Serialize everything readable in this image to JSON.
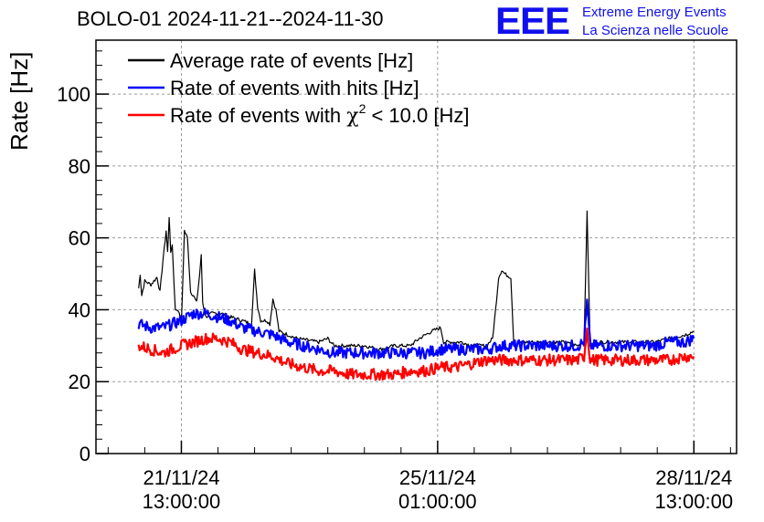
{
  "chart_data": {
    "type": "line",
    "title": "BOLO-01 2024-11-21--2024-11-30",
    "ylabel": "Rate [Hz]",
    "xlabel": "",
    "ylim": [
      0,
      115
    ],
    "yticks": [
      0,
      20,
      40,
      60,
      80,
      100
    ],
    "x_axis_unit": "hours since 2024-11-21 13:00:00",
    "xticks": [
      {
        "x": 0,
        "line1": "21/11/24",
        "line2": "13:00:00"
      },
      {
        "x": 84,
        "line1": "25/11/24",
        "line2": "01:00:00"
      },
      {
        "x": 168,
        "line1": "28/11/24",
        "line2": "13:00:00"
      }
    ],
    "xlim": [
      -28,
      182
    ],
    "grid": true,
    "legend_position": "top-left",
    "series": [
      {
        "name": "Average rate of events [Hz]",
        "color": "#000000",
        "points": [
          [
            -14,
            46
          ],
          [
            -13.5,
            50
          ],
          [
            -13,
            44
          ],
          [
            -12,
            48
          ],
          [
            -10,
            47
          ],
          [
            -8,
            49
          ],
          [
            -7,
            45
          ],
          [
            -6,
            54
          ],
          [
            -5,
            62
          ],
          [
            -4.5,
            56
          ],
          [
            -4,
            66
          ],
          [
            -3.5,
            56
          ],
          [
            -3,
            58
          ],
          [
            -2,
            40
          ],
          [
            -1,
            40
          ],
          [
            0,
            36
          ],
          [
            1,
            62
          ],
          [
            2,
            60
          ],
          [
            3,
            45
          ],
          [
            4,
            44
          ],
          [
            5,
            42
          ],
          [
            6,
            50
          ],
          [
            6.5,
            55
          ],
          [
            7,
            42
          ],
          [
            8,
            38
          ],
          [
            10,
            39
          ],
          [
            13,
            39
          ],
          [
            16,
            38
          ],
          [
            20,
            37
          ],
          [
            23,
            36
          ],
          [
            24,
            51
          ],
          [
            25,
            41
          ],
          [
            26,
            37
          ],
          [
            28,
            37
          ],
          [
            29,
            36
          ],
          [
            30,
            43
          ],
          [
            31,
            40
          ],
          [
            32,
            34
          ],
          [
            35,
            33
          ],
          [
            38,
            32
          ],
          [
            45,
            31
          ],
          [
            48,
            32
          ],
          [
            50,
            30
          ],
          [
            55,
            30
          ],
          [
            60,
            30
          ],
          [
            65,
            29
          ],
          [
            70,
            30
          ],
          [
            75,
            30
          ],
          [
            78,
            32
          ],
          [
            82,
            34
          ],
          [
            85,
            35
          ],
          [
            86,
            31
          ],
          [
            88,
            31
          ],
          [
            92,
            31
          ],
          [
            95,
            30
          ],
          [
            100,
            30
          ],
          [
            102,
            32
          ],
          [
            103,
            40
          ],
          [
            104,
            49
          ],
          [
            105,
            51
          ],
          [
            106,
            50
          ],
          [
            108,
            49
          ],
          [
            109,
            30
          ],
          [
            112,
            31
          ],
          [
            118,
            31
          ],
          [
            125,
            31
          ],
          [
            130,
            30
          ],
          [
            132,
            31
          ],
          [
            133,
            67
          ],
          [
            134,
            30
          ],
          [
            136,
            31
          ],
          [
            140,
            31
          ],
          [
            145,
            31
          ],
          [
            150,
            31
          ],
          [
            155,
            31
          ],
          [
            160,
            32
          ],
          [
            165,
            33
          ],
          [
            168,
            34
          ]
        ]
      },
      {
        "name": "Rate of events with hits [Hz]",
        "color": "#0000ff",
        "points": [
          [
            -14,
            36
          ],
          [
            -10,
            35
          ],
          [
            -6,
            35
          ],
          [
            -3,
            36
          ],
          [
            0,
            37
          ],
          [
            4,
            39
          ],
          [
            8,
            39
          ],
          [
            12,
            38
          ],
          [
            16,
            37
          ],
          [
            20,
            35
          ],
          [
            25,
            34
          ],
          [
            30,
            33
          ],
          [
            35,
            31
          ],
          [
            40,
            30
          ],
          [
            45,
            29
          ],
          [
            50,
            28
          ],
          [
            55,
            28
          ],
          [
            60,
            28
          ],
          [
            65,
            28
          ],
          [
            70,
            28
          ],
          [
            75,
            28
          ],
          [
            80,
            28
          ],
          [
            85,
            29
          ],
          [
            90,
            29
          ],
          [
            95,
            29
          ],
          [
            100,
            29
          ],
          [
            105,
            30
          ],
          [
            110,
            30
          ],
          [
            115,
            30
          ],
          [
            120,
            30
          ],
          [
            125,
            30
          ],
          [
            130,
            30
          ],
          [
            132,
            31
          ],
          [
            133,
            42
          ],
          [
            134,
            30
          ],
          [
            138,
            30
          ],
          [
            145,
            30
          ],
          [
            150,
            30
          ],
          [
            155,
            30
          ],
          [
            160,
            31
          ],
          [
            165,
            31
          ],
          [
            168,
            32
          ]
        ]
      },
      {
        "name": "Rate of events with χ² < 10.0 [Hz]",
        "color": "#ff0000",
        "points": [
          [
            -14,
            30
          ],
          [
            -10,
            29
          ],
          [
            -6,
            28
          ],
          [
            -3,
            29
          ],
          [
            0,
            30
          ],
          [
            4,
            31
          ],
          [
            8,
            32
          ],
          [
            12,
            32
          ],
          [
            16,
            31
          ],
          [
            20,
            29
          ],
          [
            25,
            28
          ],
          [
            30,
            27
          ],
          [
            35,
            25
          ],
          [
            40,
            24
          ],
          [
            45,
            23
          ],
          [
            50,
            23
          ],
          [
            55,
            22
          ],
          [
            60,
            22
          ],
          [
            65,
            22
          ],
          [
            70,
            22
          ],
          [
            75,
            23
          ],
          [
            80,
            23
          ],
          [
            85,
            24
          ],
          [
            90,
            24
          ],
          [
            95,
            25
          ],
          [
            100,
            26
          ],
          [
            105,
            26
          ],
          [
            110,
            26
          ],
          [
            115,
            26
          ],
          [
            120,
            26
          ],
          [
            125,
            26
          ],
          [
            130,
            26
          ],
          [
            132,
            27
          ],
          [
            133,
            35
          ],
          [
            134,
            26
          ],
          [
            138,
            26
          ],
          [
            145,
            26
          ],
          [
            150,
            26
          ],
          [
            155,
            26
          ],
          [
            160,
            26
          ],
          [
            165,
            27
          ],
          [
            168,
            27
          ]
        ]
      }
    ]
  },
  "legend": {
    "items": [
      {
        "text": "Average rate of events [Hz]",
        "color": "#000000"
      },
      {
        "text": "Rate of events with hits [Hz]",
        "color": "#0000ff"
      },
      {
        "pre": "Rate of events with ",
        "chi": "χ",
        "sup": "2",
        "post": " < 10.0 [Hz]",
        "color": "#ff0000"
      }
    ]
  },
  "logo": {
    "mark": "EEE",
    "line1": "Extreme Energy Events",
    "line2": "La Scienza nelle Scuole",
    "color": "#1010ee"
  }
}
